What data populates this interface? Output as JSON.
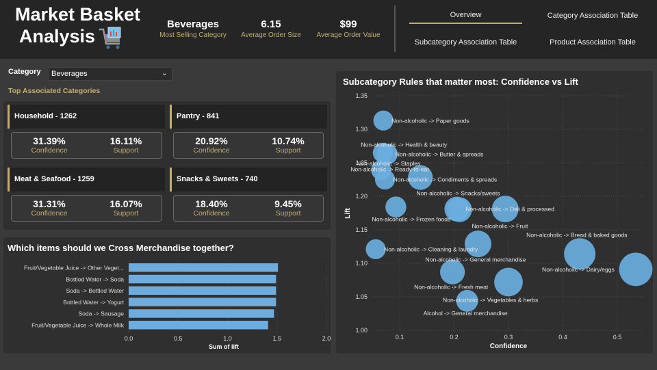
{
  "header": {
    "title_line1": "Market Basket",
    "title_line2": "Analysis",
    "icon": "shopping-cart-chart-icon",
    "kpis": [
      {
        "value": "Beverages",
        "label": "Most Selling Category"
      },
      {
        "value": "6.15",
        "label": "Average Order Size"
      },
      {
        "value": "$99",
        "label": "Average Order Value"
      }
    ],
    "nav": [
      {
        "label": "Overview",
        "active": true
      },
      {
        "label": "Category Association Table",
        "active": false
      },
      {
        "label": "Subcategory Association Table",
        "active": false
      },
      {
        "label": "Product Association Table",
        "active": false
      }
    ]
  },
  "filter": {
    "label": "Category",
    "selected": "Beverages",
    "chevron_icon": "chevron-down-icon"
  },
  "top_associated": {
    "title": "Top Associated Categories",
    "cards": [
      {
        "name": "Household - 1262",
        "confidence": "31.39%",
        "support": "16.11%"
      },
      {
        "name": "Pantry - 841",
        "confidence": "20.92%",
        "support": "10.74%"
      },
      {
        "name": "Meat & Seafood - 1259",
        "confidence": "31.31%",
        "support": "16.07%"
      },
      {
        "name": "Snacks & Sweets - 740",
        "confidence": "18.40%",
        "support": "9.45%"
      }
    ],
    "confidence_label": "Confidence",
    "support_label": "Support"
  },
  "colors": {
    "accent": "#c6ae72",
    "bar": "#6cacdf",
    "bubble": "#6aaee0",
    "background": "#3a3a3a",
    "panel": "#2f2f2f",
    "header": "#252525"
  },
  "chart_data": [
    {
      "type": "bar",
      "orientation": "horizontal",
      "title": "Which items should we Cross Merchandise together?",
      "categories": [
        "Fruit/Vegetable Juice -> Other Veget...",
        "Bottled Water -> Soda",
        "Soda -> Bottled Water",
        "Bottled Water -> Yogurt",
        "Soda -> Sausage",
        "Fruit/Vegetable Juice -> Whole Milk"
      ],
      "values": [
        1.51,
        1.49,
        1.49,
        1.49,
        1.47,
        1.41
      ],
      "xlabel": "Sum of lift",
      "ylabel": "",
      "xlim": [
        0,
        2.0
      ],
      "xticks": [
        "0.0",
        "0.5",
        "1.0",
        "1.5",
        "2.0"
      ],
      "grid": true
    },
    {
      "type": "scatter",
      "title": "Subcategory Rules that matter most: Confidence vs Lift",
      "xlabel": "Confidence",
      "ylabel": "Lift",
      "xlim": [
        0.05,
        0.55
      ],
      "ylim": [
        1.0,
        1.35
      ],
      "xticks": [
        "0.1",
        "0.2",
        "0.3",
        "0.4",
        "0.5"
      ],
      "yticks": [
        "1.00",
        "1.05",
        "1.10",
        "1.15",
        "1.20",
        "1.25",
        "1.30",
        "1.35"
      ],
      "grid": true,
      "points": [
        {
          "label": "Non-alcoholic -> Paper goods",
          "x": 0.07,
          "y": 1.313,
          "size": 0.4
        },
        {
          "label": "Non-alcoholic -> Health & beauty",
          "x": 0.069,
          "y": 1.265,
          "size": 0.4
        },
        {
          "label": "Non-alcoholic -> Butter & spreads",
          "x": 0.077,
          "y": 1.263,
          "size": 0.45
        },
        {
          "label": "Non-alcoholic -> Staples",
          "x": 0.066,
          "y": 1.239,
          "size": 0.4
        },
        {
          "label": "Non-alcoholic -> Ready-to-eat",
          "x": 0.138,
          "y": 1.228,
          "size": 0.65
        },
        {
          "label": "Non-alcoholic -> Condiments & spreads",
          "x": 0.073,
          "y": 1.225,
          "size": 0.4
        },
        {
          "label": "Non-alcoholic -> Frozen foods",
          "x": 0.093,
          "y": 1.184,
          "size": 0.45
        },
        {
          "label": "Non-alcoholic -> Snacks/sweets",
          "x": 0.205,
          "y": 1.181,
          "size": 0.65
        },
        {
          "label": "Non-alcoholic -> Deli & processed",
          "x": 0.294,
          "y": 1.181,
          "size": 0.75
        },
        {
          "label": "Non-alcoholic -> Fruit",
          "x": 0.21,
          "y": 1.18,
          "size": 0.65
        },
        {
          "label": "Non-alcoholic -> Cleaning & laundry",
          "x": 0.056,
          "y": 1.121,
          "size": 0.4
        },
        {
          "label": "Non-alcoholic -> General merchandise",
          "x": 0.244,
          "y": 1.129,
          "size": 0.75
        },
        {
          "label": "Non-alcoholic -> Bread & baked goods",
          "x": 0.431,
          "y": 1.114,
          "size": 1.0
        },
        {
          "label": "Non-alcoholic -> Dairy/eggs",
          "x": 0.534,
          "y": 1.091,
          "size": 1.1
        },
        {
          "label": "Non-alcoholic -> Fresh meat",
          "x": 0.197,
          "y": 1.087,
          "size": 0.65
        },
        {
          "label": "Non-alcoholic -> Vegetables & herbs",
          "x": 0.3,
          "y": 1.072,
          "size": 0.85
        },
        {
          "label": "Alcohol -> General merchandise",
          "x": 0.224,
          "y": 1.044,
          "size": 0.5
        }
      ]
    }
  ]
}
